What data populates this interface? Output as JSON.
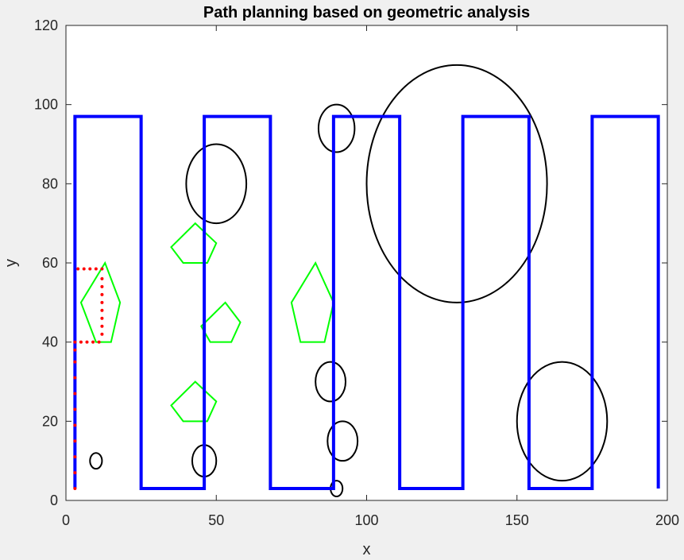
{
  "chart_data": {
    "type": "line",
    "title": "Path planning based on geometric analysis",
    "xlabel": "x",
    "ylabel": "y",
    "xlim": [
      0,
      200
    ],
    "ylim": [
      0,
      120
    ],
    "x_ticks": [
      "0",
      "50",
      "100",
      "150",
      "200"
    ],
    "y_ticks": [
      "0",
      "20",
      "40",
      "60",
      "80",
      "100",
      "120"
    ],
    "grid": false,
    "legend": "none",
    "colors": {
      "path": "#0000ff",
      "detour": "#ff0000",
      "polygon": "#00ff00",
      "ellipse": "#000000"
    },
    "series": [
      {
        "kind": "coverage-path",
        "points": [
          [
            3,
            3
          ],
          [
            3,
            97
          ],
          [
            25,
            97
          ],
          [
            25,
            3
          ],
          [
            46,
            3
          ],
          [
            46,
            97
          ],
          [
            68,
            97
          ],
          [
            68,
            3
          ],
          [
            89,
            3
          ],
          [
            89,
            97
          ],
          [
            111,
            97
          ],
          [
            111,
            3
          ],
          [
            132,
            3
          ],
          [
            132,
            97
          ],
          [
            154,
            97
          ],
          [
            154,
            3
          ],
          [
            175,
            3
          ],
          [
            175,
            97
          ],
          [
            197,
            97
          ],
          [
            197,
            3
          ]
        ]
      },
      {
        "kind": "detour-dots",
        "points": [
          [
            3,
            3
          ],
          [
            3,
            7
          ],
          [
            3,
            11
          ],
          [
            3,
            15
          ],
          [
            3,
            19
          ],
          [
            3,
            23
          ],
          [
            3,
            27
          ],
          [
            3,
            31
          ],
          [
            3,
            35
          ],
          [
            3,
            38
          ],
          [
            3,
            40
          ],
          [
            5,
            40
          ],
          [
            7,
            40
          ],
          [
            9,
            40
          ],
          [
            11,
            40
          ],
          [
            12,
            42
          ],
          [
            12,
            44
          ],
          [
            12,
            46
          ],
          [
            12,
            48
          ],
          [
            12,
            50
          ],
          [
            12,
            52
          ],
          [
            12,
            54
          ],
          [
            12,
            56
          ],
          [
            12,
            58.5
          ],
          [
            10,
            58.5
          ],
          [
            8,
            58.5
          ],
          [
            6,
            58.5
          ],
          [
            4,
            58.5
          ]
        ]
      }
    ],
    "obstacles_polygons": [
      [
        [
          10,
          40
        ],
        [
          15,
          40
        ],
        [
          18,
          50
        ],
        [
          13,
          60
        ],
        [
          5,
          50
        ]
      ],
      [
        [
          39,
          60
        ],
        [
          47,
          60
        ],
        [
          50,
          65
        ],
        [
          43,
          70
        ],
        [
          35,
          64
        ]
      ],
      [
        [
          48,
          40
        ],
        [
          55,
          40
        ],
        [
          58,
          45
        ],
        [
          53,
          50
        ],
        [
          45,
          44
        ]
      ],
      [
        [
          39,
          20
        ],
        [
          47,
          20
        ],
        [
          50,
          25
        ],
        [
          43,
          30
        ],
        [
          35,
          24
        ]
      ],
      [
        [
          78,
          40
        ],
        [
          86,
          40
        ],
        [
          89,
          50
        ],
        [
          83,
          60
        ],
        [
          75,
          50
        ]
      ]
    ],
    "obstacles_ellipses": [
      {
        "cx": 10,
        "cy": 10,
        "rx": 2,
        "ry": 2
      },
      {
        "cx": 46,
        "cy": 10,
        "rx": 4,
        "ry": 4
      },
      {
        "cx": 50,
        "cy": 80,
        "rx": 10,
        "ry": 10
      },
      {
        "cx": 90,
        "cy": 94,
        "rx": 6,
        "ry": 6
      },
      {
        "cx": 88,
        "cy": 30,
        "rx": 5,
        "ry": 5
      },
      {
        "cx": 92,
        "cy": 15,
        "rx": 5,
        "ry": 5
      },
      {
        "cx": 90,
        "cy": 3,
        "rx": 2,
        "ry": 2
      },
      {
        "cx": 130,
        "cy": 80,
        "rx": 30,
        "ry": 30
      },
      {
        "cx": 165,
        "cy": 20,
        "rx": 15,
        "ry": 15
      }
    ]
  }
}
